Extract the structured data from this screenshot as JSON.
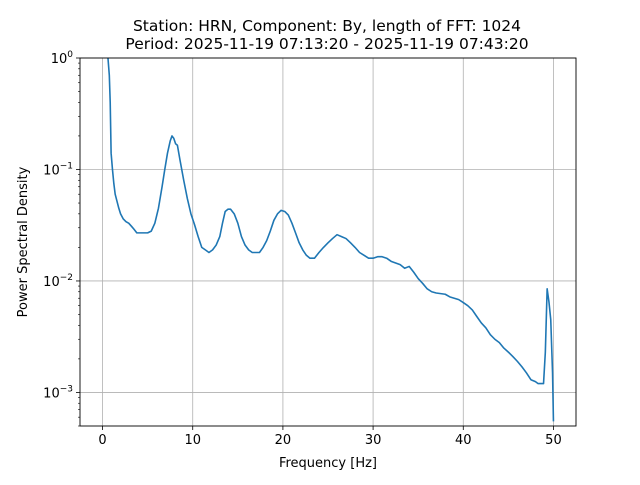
{
  "chart_data": {
    "type": "line",
    "title": [
      "Station: HRN, Component: By, length of FFT: 1024",
      "Period: 2025-11-19 07:13:20 - 2025-11-19 07:43:20"
    ],
    "xlabel": "Frequency [Hz]",
    "ylabel": "Power Spectral Density",
    "xlim": [
      -2.5,
      52.5
    ],
    "ylim": [
      0.0005,
      1
    ],
    "yscale": "log",
    "grid": true,
    "x_ticks": [
      0,
      10,
      20,
      30,
      40,
      50
    ],
    "x_tick_labels": [
      "0",
      "10",
      "20",
      "30",
      "40",
      "50"
    ],
    "y_ticks": [
      0.001,
      0.01,
      0.1,
      1
    ],
    "y_tick_labels": [
      {
        "base": "10",
        "exp": "−3"
      },
      {
        "base": "10",
        "exp": "−2"
      },
      {
        "base": "10",
        "exp": "−1"
      },
      {
        "base": "10",
        "exp": "0"
      }
    ],
    "line_color": "#1f77b4",
    "series": [
      {
        "x": [
          0.5,
          0.6,
          0.75,
          0.85,
          0.95,
          1.1,
          1.25,
          1.4,
          1.6,
          1.8,
          2.0,
          2.3,
          2.6,
          2.9,
          3.2,
          3.5,
          3.8,
          4.2,
          4.6,
          5.0,
          5.4,
          5.8,
          6.2,
          6.6,
          6.9,
          7.2,
          7.5,
          7.7,
          7.9,
          8.1,
          8.3,
          8.6,
          9.0,
          9.4,
          9.8,
          10.2,
          10.6,
          11.0,
          11.4,
          11.8,
          12.2,
          12.6,
          13.0,
          13.3,
          13.6,
          13.9,
          14.2,
          14.6,
          15.0,
          15.4,
          15.8,
          16.2,
          16.6,
          17.0,
          17.4,
          17.8,
          18.2,
          18.6,
          19.0,
          19.4,
          19.8,
          20.2,
          20.6,
          21.0,
          21.4,
          21.8,
          22.2,
          22.6,
          23.0,
          23.5,
          24.0,
          24.5,
          25.0,
          25.5,
          26.0,
          26.5,
          27.0,
          27.5,
          28.0,
          28.5,
          29.0,
          29.5,
          30.0,
          30.5,
          31.0,
          31.5,
          32.0,
          32.5,
          33.0,
          33.5,
          34.0,
          34.5,
          35.0,
          35.5,
          36.0,
          36.5,
          37.0,
          37.5,
          38.0,
          38.5,
          39.0,
          39.5,
          40.0,
          40.5,
          41.0,
          41.5,
          42.0,
          42.5,
          43.0,
          43.5,
          44.0,
          44.5,
          45.0,
          45.5,
          46.0,
          46.5,
          47.0,
          47.5,
          48.0,
          48.3,
          48.5,
          48.7,
          48.9,
          49.1,
          49.3,
          49.5,
          49.7,
          49.9,
          50.0
        ],
        "y": [
          1.2,
          1.0,
          0.7,
          0.4,
          0.14,
          0.1,
          0.075,
          0.06,
          0.052,
          0.045,
          0.04,
          0.036,
          0.034,
          0.033,
          0.031,
          0.029,
          0.027,
          0.027,
          0.027,
          0.027,
          0.028,
          0.033,
          0.045,
          0.07,
          0.1,
          0.14,
          0.18,
          0.2,
          0.19,
          0.17,
          0.165,
          0.12,
          0.08,
          0.055,
          0.04,
          0.032,
          0.025,
          0.02,
          0.019,
          0.018,
          0.019,
          0.021,
          0.025,
          0.033,
          0.042,
          0.044,
          0.044,
          0.04,
          0.033,
          0.025,
          0.021,
          0.019,
          0.018,
          0.018,
          0.018,
          0.02,
          0.023,
          0.028,
          0.035,
          0.04,
          0.043,
          0.042,
          0.039,
          0.033,
          0.027,
          0.022,
          0.019,
          0.017,
          0.016,
          0.016,
          0.018,
          0.02,
          0.022,
          0.024,
          0.026,
          0.025,
          0.024,
          0.022,
          0.02,
          0.018,
          0.017,
          0.016,
          0.016,
          0.0165,
          0.0165,
          0.016,
          0.015,
          0.0145,
          0.014,
          0.013,
          0.0135,
          0.012,
          0.0105,
          0.0095,
          0.0085,
          0.008,
          0.0078,
          0.0077,
          0.0076,
          0.0072,
          0.007,
          0.0068,
          0.0064,
          0.006,
          0.0055,
          0.0048,
          0.0042,
          0.0038,
          0.0033,
          0.003,
          0.0028,
          0.0025,
          0.0023,
          0.0021,
          0.0019,
          0.0017,
          0.0015,
          0.0013,
          0.00125,
          0.0012,
          0.0012,
          0.0012,
          0.0012,
          0.0023,
          0.0085,
          0.0065,
          0.0045,
          0.0015,
          0.00055
        ]
      }
    ]
  }
}
